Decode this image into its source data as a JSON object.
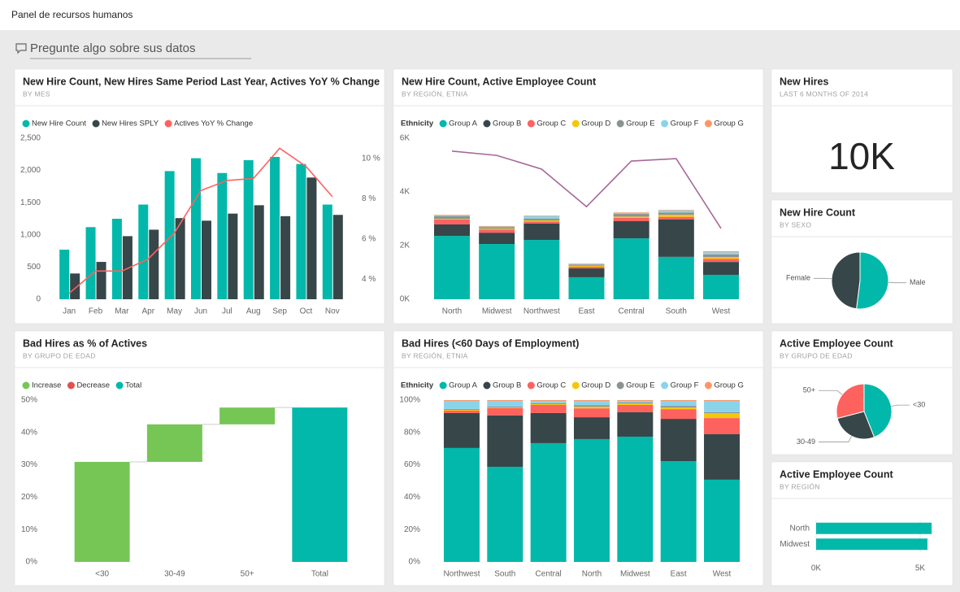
{
  "header": {
    "title": "Panel de recursos humanos",
    "qna_placeholder": "Pregunte algo sobre sus datos"
  },
  "chart_data": [
    {
      "type": "combo",
      "title": "New Hire Count, New Hires Same Period Last Year, Actives YoY % Change",
      "subtitle": "BY MES",
      "categories": [
        "Jan",
        "Feb",
        "Mar",
        "Apr",
        "May",
        "Jun",
        "Jul",
        "Aug",
        "Sep",
        "Oct",
        "Nov"
      ],
      "series": [
        {
          "name": "New Hire Count",
          "color": "#01b8aa",
          "values": [
            770,
            1120,
            1250,
            1470,
            1990,
            2190,
            1960,
            2160,
            2210,
            2100,
            1470
          ]
        },
        {
          "name": "New Hires SPLY",
          "color": "#374649",
          "values": [
            400,
            580,
            980,
            1080,
            1260,
            1220,
            1330,
            1460,
            1290,
            1890,
            1310
          ]
        },
        {
          "name": "Actives YoY % Change",
          "color": "#fd625e",
          "type": "line",
          "axis": "y2",
          "values": [
            3.3,
            4.4,
            4.4,
            5.0,
            6.3,
            8.4,
            8.9,
            9.0,
            10.5,
            9.6,
            8.1
          ]
        }
      ],
      "ylim": [
        0,
        2500
      ],
      "yticks": [
        0,
        500,
        {
          "value": 1000,
          "label": "1,000"
        },
        {
          "value": 1500,
          "label": "1,500"
        },
        {
          "value": 2000,
          "label": "2,000"
        },
        {
          "value": 2500,
          "label": "2,500"
        }
      ],
      "y2lim": [
        3,
        11
      ],
      "y2ticks": [
        {
          "value": 4,
          "label": "4 %"
        },
        {
          "value": 6,
          "label": "6 %"
        },
        {
          "value": 8,
          "label": "8 %"
        },
        {
          "value": 10,
          "label": "10 %"
        }
      ]
    },
    {
      "type": "combo",
      "title": "New Hire Count, Active Employee Count",
      "subtitle": "BY REGIÓN, ETNIA",
      "stacked": true,
      "legend_title": "Ethnicity",
      "categories": [
        "North",
        "Midwest",
        "Northwest",
        "East",
        "Central",
        "South",
        "West"
      ],
      "series": [
        {
          "name": "Group A",
          "color": "#01b8aa",
          "values": [
            2360,
            2060,
            2210,
            820,
            2270,
            1580,
            910
          ]
        },
        {
          "name": "Group B",
          "color": "#374649",
          "values": [
            430,
            420,
            610,
            330,
            640,
            1390,
            480
          ]
        },
        {
          "name": "Group C",
          "color": "#fd625e",
          "values": [
            180,
            120,
            80,
            60,
            120,
            100,
            120
          ]
        },
        {
          "name": "Group D",
          "color": "#f2c80f",
          "values": [
            30,
            30,
            40,
            40,
            50,
            80,
            60
          ]
        },
        {
          "name": "Group E",
          "color": "#8c9294",
          "values": [
            100,
            60,
            60,
            40,
            100,
            80,
            100
          ]
        },
        {
          "name": "Group F",
          "color": "#8ad4eb",
          "values": [
            30,
            20,
            100,
            20,
            40,
            80,
            80
          ]
        },
        {
          "name": "Group G",
          "color": "#fe9666",
          "values": [
            20,
            20,
            20,
            20,
            20,
            20,
            40
          ]
        },
        {
          "color": "#a66999",
          "type": "line",
          "values": [
            5520,
            5360,
            4850,
            3450,
            5150,
            5240,
            2640
          ]
        }
      ],
      "ylim": [
        0,
        6000
      ],
      "yticks": [
        {
          "value": 0,
          "label": "0K"
        },
        {
          "value": 2000,
          "label": "2K"
        },
        {
          "value": 4000,
          "label": "4K"
        },
        {
          "value": 6000,
          "label": "6K"
        }
      ]
    },
    {
      "type": "card",
      "title": "New Hires",
      "subtitle": "LAST 6 MONTHS OF 2014",
      "value": 10000,
      "value_label": "10K"
    },
    {
      "type": "pie",
      "title": "New Hire Count",
      "subtitle": "BY SEXO",
      "categories": [
        "Male",
        "Female"
      ],
      "values": [
        52,
        48
      ],
      "colors": [
        "#01b8aa",
        "#374649"
      ]
    },
    {
      "type": "waterfall",
      "title": "Bad Hires as % of Actives",
      "subtitle": "BY GRUPO DE EDAD",
      "legend": [
        {
          "name": "Increase",
          "color": "#76c655"
        },
        {
          "name": "Decrease",
          "color": "#e0514f"
        },
        {
          "name": "Total",
          "color": "#01b8aa"
        }
      ],
      "categories": [
        "<30",
        "30-49",
        "50+",
        "Total"
      ],
      "values": [
        30.9,
        11.6,
        5.2,
        47.7
      ],
      "last_is_total": true,
      "ylim": [
        0,
        50
      ],
      "yticks": [
        {
          "value": 0,
          "label": "0%"
        },
        {
          "value": 10,
          "label": "10%"
        },
        {
          "value": 20,
          "label": "20%"
        },
        {
          "value": 30,
          "label": "30%"
        },
        {
          "value": 40,
          "label": "40%"
        },
        {
          "value": 50,
          "label": "50%"
        }
      ]
    },
    {
      "type": "bar",
      "title": "Bad Hires (<60 Days of Employment)",
      "subtitle": "BY REGIÓN, ETNIA",
      "stacked": true,
      "legend_title": "Ethnicity",
      "categories": [
        "Northwest",
        "South",
        "Central",
        "North",
        "Midwest",
        "East",
        "West"
      ],
      "series": [
        {
          "name": "Group A",
          "color": "#01b8aa",
          "values": [
            70.4,
            58.8,
            73.4,
            75.9,
            77.4,
            62.3,
            50.8
          ]
        },
        {
          "name": "Group B",
          "color": "#374649",
          "values": [
            21.6,
            31.7,
            18.6,
            13.5,
            15.1,
            26.1,
            28.1
          ]
        },
        {
          "name": "Group C",
          "color": "#fd625e",
          "values": [
            1.5,
            4.5,
            5,
            5.5,
            4.5,
            6,
            10
          ]
        },
        {
          "name": "Group D",
          "color": "#f2c80f",
          "values": [
            0.5,
            0.5,
            0.5,
            1,
            1,
            1,
            3
          ]
        },
        {
          "name": "Group E",
          "color": "#8c9294",
          "values": [
            0.5,
            0.5,
            0.5,
            1,
            0.5,
            1,
            0.6
          ]
        },
        {
          "name": "Group F",
          "color": "#8ad4eb",
          "values": [
            5,
            3.5,
            1.5,
            2.6,
            1,
            3.1,
            7
          ]
        },
        {
          "name": "Group G",
          "color": "#fe9666",
          "values": [
            0.5,
            0.5,
            0.5,
            0.5,
            0.5,
            0.5,
            0.5
          ]
        }
      ],
      "ylim": [
        0,
        100
      ],
      "yticks": [
        {
          "value": 0,
          "label": "0%"
        },
        {
          "value": 20,
          "label": "20%"
        },
        {
          "value": 40,
          "label": "40%"
        },
        {
          "value": 60,
          "label": "60%"
        },
        {
          "value": 80,
          "label": "80%"
        },
        {
          "value": 100,
          "label": "100%"
        }
      ]
    },
    {
      "type": "pie",
      "title": "Active Employee Count",
      "subtitle": "BY GRUPO DE EDAD",
      "categories": [
        "<30",
        "30-49",
        "50+"
      ],
      "values": [
        44,
        27,
        29
      ],
      "colors": [
        "#01b8aa",
        "#374649",
        "#fd625e"
      ]
    },
    {
      "type": "bar",
      "horizontal": true,
      "title": "Active Employee Count",
      "subtitle": "BY REGIÓN",
      "categories": [
        "North",
        "Midwest"
      ],
      "values": [
        5550,
        5350
      ],
      "color": "#01b8aa",
      "xlim": [
        0,
        6000
      ],
      "xticks": [
        {
          "value": 0,
          "label": "0K"
        },
        {
          "value": 5000,
          "label": "5K"
        }
      ]
    }
  ]
}
